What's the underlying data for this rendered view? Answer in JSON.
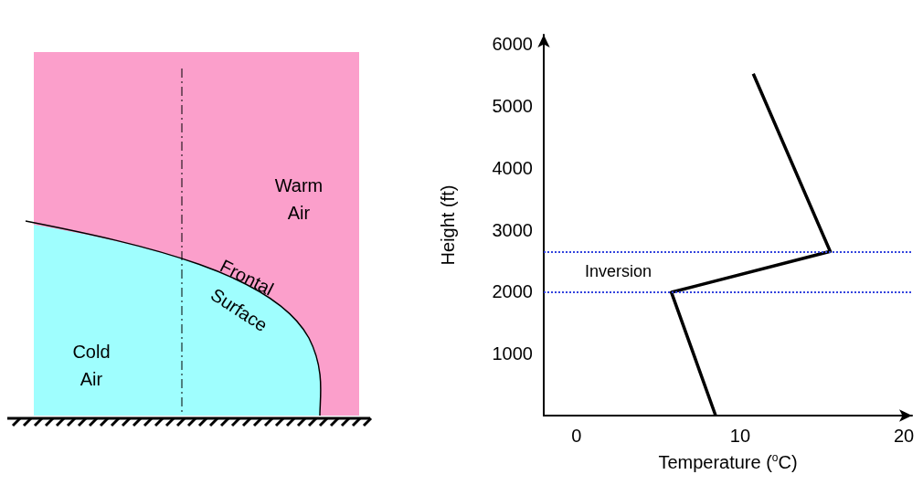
{
  "chart_data": [
    {
      "type": "other",
      "annotations": [
        "Warm Air",
        "Frontal Surface",
        "Cold Air"
      ]
    },
    {
      "type": "line",
      "xlabel": "Temperature ($^{o}$C)",
      "ylabel": "Height (ft)",
      "x": [
        8.5,
        5.8,
        15.5,
        10.8
      ],
      "series": [
        {
          "color": "#000000",
          "values": [
            0,
            1990,
            2650,
            5520
          ]
        }
      ],
      "xlim": [
        -2,
        20.5
      ],
      "xticks": [
        0,
        10,
        20
      ],
      "ylim": [
        0,
        6150
      ],
      "yticks": [
        1000,
        2000,
        3000,
        4000,
        5000,
        6000
      ],
      "grid": false,
      "marker": "none",
      "line_style": "solid",
      "ref_lines": [
        {
          "axis": "y",
          "value": 2650,
          "label": null,
          "color": "#3344dd",
          "line_style": "dotted"
        },
        {
          "axis": "y",
          "value": 2000,
          "label": null,
          "color": "#3344dd",
          "line_style": "dotted"
        }
      ],
      "annotations": [
        "Inversion"
      ]
    }
  ]
}
